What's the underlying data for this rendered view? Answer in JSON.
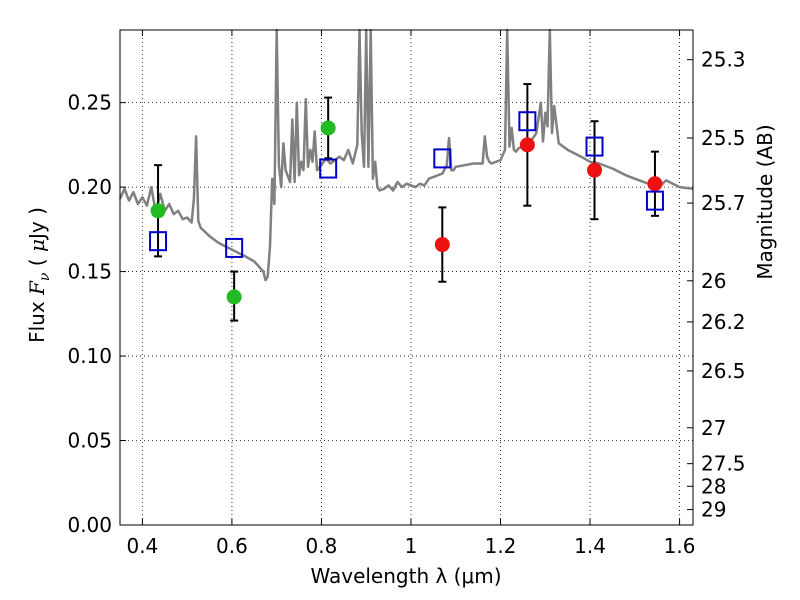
{
  "chart_data": {
    "type": "scatter",
    "xlabel": "Wavelength  λ (μm)",
    "ylabel": "Flux  F_ν ( μJy )",
    "y2label": "Magnitude (AB)",
    "xlim": [
      0.35,
      1.63
    ],
    "ylim": [
      0.0,
      0.293
    ],
    "grid": true,
    "x_ticks": [
      {
        "value": 0.4,
        "label": "0.4"
      },
      {
        "value": 0.6,
        "label": "0.6"
      },
      {
        "value": 0.8,
        "label": "0.8"
      },
      {
        "value": 1.0,
        "label": "1"
      },
      {
        "value": 1.2,
        "label": "1.2"
      },
      {
        "value": 1.4,
        "label": "1.4"
      },
      {
        "value": 1.6,
        "label": "1.6"
      }
    ],
    "y_ticks": [
      {
        "value": 0.0,
        "label": "0.00"
      },
      {
        "value": 0.05,
        "label": "0.05"
      },
      {
        "value": 0.1,
        "label": "0.10"
      },
      {
        "value": 0.15,
        "label": "0.15"
      },
      {
        "value": 0.2,
        "label": "0.20"
      },
      {
        "value": 0.25,
        "label": "0.25"
      }
    ],
    "y2_ticks": [
      {
        "mag": 25.3,
        "label": "25.3"
      },
      {
        "mag": 25.5,
        "label": "25.5"
      },
      {
        "mag": 25.7,
        "label": "25.7"
      },
      {
        "mag": 26.0,
        "label": "26"
      },
      {
        "mag": 26.2,
        "label": "26.2"
      },
      {
        "mag": 26.5,
        "label": "26.5"
      },
      {
        "mag": 27.0,
        "label": "27"
      },
      {
        "mag": 27.5,
        "label": "27.5"
      },
      {
        "mag": 28.0,
        "label": "28"
      },
      {
        "mag": 29.0,
        "label": "29"
      }
    ],
    "colors": {
      "model": "#808080",
      "observed_optical": "#22bb22",
      "observed_nir": "#ee1111",
      "synthetic": "#0000cc",
      "errorbar": "#000000"
    },
    "model_spectrum": {
      "x": [
        0.35,
        0.36,
        0.37,
        0.38,
        0.39,
        0.4,
        0.41,
        0.42,
        0.43,
        0.44,
        0.45,
        0.46,
        0.47,
        0.48,
        0.49,
        0.5,
        0.51,
        0.515,
        0.52,
        0.525,
        0.53,
        0.55,
        0.57,
        0.6,
        0.63,
        0.65,
        0.66,
        0.67,
        0.675,
        0.68,
        0.685,
        0.69,
        0.695,
        0.7,
        0.705,
        0.71,
        0.715,
        0.72,
        0.73,
        0.735,
        0.74,
        0.745,
        0.75,
        0.755,
        0.76,
        0.765,
        0.77,
        0.775,
        0.78,
        0.785,
        0.79,
        0.8,
        0.81,
        0.82,
        0.83,
        0.84,
        0.85,
        0.86,
        0.87,
        0.88,
        0.885,
        0.89,
        0.895,
        0.9,
        0.905,
        0.91,
        0.915,
        0.92,
        0.925,
        0.93,
        0.94,
        0.95,
        0.96,
        0.97,
        0.98,
        0.99,
        1.0,
        1.01,
        1.02,
        1.03,
        1.04,
        1.05,
        1.07,
        1.08,
        1.085,
        1.09,
        1.095,
        1.1,
        1.12,
        1.14,
        1.16,
        1.165,
        1.17,
        1.175,
        1.18,
        1.2,
        1.21,
        1.215,
        1.22,
        1.225,
        1.23,
        1.235,
        1.24,
        1.25,
        1.26,
        1.27,
        1.28,
        1.29,
        1.295,
        1.3,
        1.305,
        1.31,
        1.315,
        1.32,
        1.33,
        1.35,
        1.38,
        1.4,
        1.42,
        1.45,
        1.48,
        1.5,
        1.53,
        1.55,
        1.57,
        1.6,
        1.63
      ],
      "y": [
        0.193,
        0.199,
        0.192,
        0.197,
        0.19,
        0.194,
        0.189,
        0.2,
        0.185,
        0.196,
        0.186,
        0.19,
        0.184,
        0.186,
        0.181,
        0.182,
        0.179,
        0.193,
        0.23,
        0.18,
        0.176,
        0.171,
        0.167,
        0.163,
        0.159,
        0.156,
        0.153,
        0.15,
        0.145,
        0.147,
        0.165,
        0.205,
        0.19,
        0.293,
        0.213,
        0.2,
        0.226,
        0.21,
        0.203,
        0.24,
        0.203,
        0.25,
        0.207,
        0.215,
        0.21,
        0.252,
        0.212,
        0.222,
        0.215,
        0.233,
        0.21,
        0.213,
        0.217,
        0.214,
        0.216,
        0.218,
        0.216,
        0.222,
        0.214,
        0.225,
        0.293,
        0.232,
        0.212,
        0.293,
        0.212,
        0.293,
        0.205,
        0.215,
        0.2,
        0.198,
        0.199,
        0.201,
        0.198,
        0.203,
        0.2,
        0.202,
        0.201,
        0.2,
        0.202,
        0.201,
        0.205,
        0.206,
        0.208,
        0.213,
        0.229,
        0.21,
        0.21,
        0.212,
        0.213,
        0.214,
        0.214,
        0.23,
        0.218,
        0.215,
        0.214,
        0.216,
        0.222,
        0.293,
        0.224,
        0.235,
        0.222,
        0.221,
        0.223,
        0.224,
        0.226,
        0.228,
        0.232,
        0.25,
        0.227,
        0.244,
        0.236,
        0.293,
        0.232,
        0.248,
        0.226,
        0.222,
        0.218,
        0.215,
        0.214,
        0.211,
        0.207,
        0.205,
        0.202,
        0.199,
        0.204,
        0.2,
        0.199
      ]
    },
    "series": [
      {
        "kind": "observed_optical",
        "x": [
          0.435,
          0.605,
          0.815
        ],
        "y": [
          0.186,
          0.135,
          0.235
        ],
        "err_low": [
          0.159,
          0.121,
          0.217
        ],
        "err_high": [
          0.213,
          0.15,
          0.253
        ]
      },
      {
        "kind": "observed_nir",
        "x": [
          1.07,
          1.26,
          1.41,
          1.545
        ],
        "y": [
          0.166,
          0.225,
          0.21,
          0.202
        ],
        "err_low": [
          0.144,
          0.189,
          0.181,
          0.183
        ],
        "err_high": [
          0.188,
          0.261,
          0.239,
          0.221
        ]
      },
      {
        "kind": "synthetic",
        "x": [
          0.435,
          0.605,
          0.815,
          1.07,
          1.26,
          1.41,
          1.545
        ],
        "y": [
          0.168,
          0.164,
          0.211,
          0.217,
          0.239,
          0.224,
          0.192
        ]
      }
    ]
  }
}
